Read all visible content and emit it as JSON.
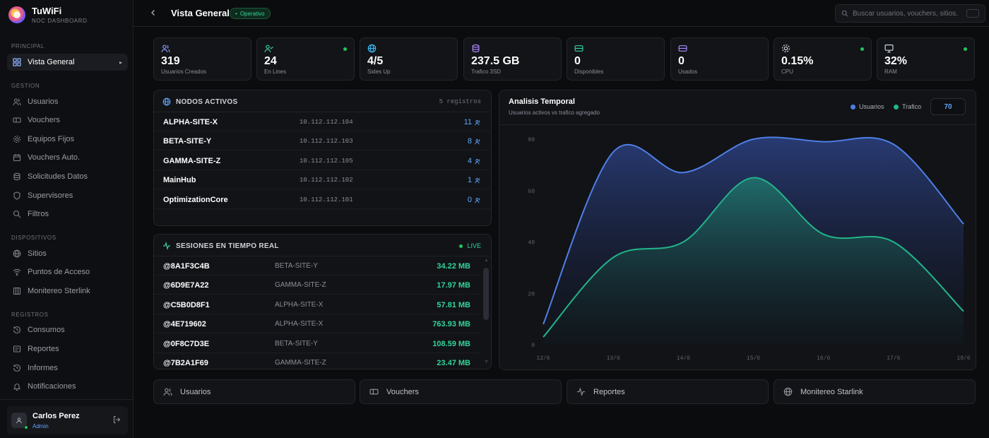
{
  "brand": {
    "name": "TuWiFi",
    "subtitle": "NOC DASHBOARD"
  },
  "sidebar": {
    "sections": [
      {
        "label": "PRINCIPAL",
        "items": [
          {
            "label": "Vista General",
            "icon": "grid-icon",
            "active": true
          }
        ]
      },
      {
        "label": "GESTION",
        "items": [
          {
            "label": "Usuarios",
            "icon": "users-icon"
          },
          {
            "label": "Vouchers",
            "icon": "ticket-icon"
          },
          {
            "label": "Equipos Fijos",
            "icon": "gear-icon"
          },
          {
            "label": "Vouchers Auto.",
            "icon": "calendar-icon"
          },
          {
            "label": "Solicitudes Datos",
            "icon": "database-icon"
          },
          {
            "label": "Supervisores",
            "icon": "shield-icon"
          },
          {
            "label": "Filtros",
            "icon": "search-icon"
          }
        ]
      },
      {
        "label": "DISPOSITIVOS",
        "items": [
          {
            "label": "Sitios",
            "icon": "globe-icon"
          },
          {
            "label": "Puntos de Acceso",
            "icon": "wifi-icon"
          },
          {
            "label": "Monitereo Sterlink",
            "icon": "satellite-icon"
          }
        ]
      },
      {
        "label": "REGISTROS",
        "items": [
          {
            "label": "Consumos",
            "icon": "history-icon"
          },
          {
            "label": "Reportes",
            "icon": "report-icon"
          },
          {
            "label": "Informes",
            "icon": "clock-icon"
          },
          {
            "label": "Notificaciones",
            "icon": "bell-icon"
          }
        ]
      }
    ]
  },
  "user": {
    "name": "Carlos Perez",
    "role": "Admin"
  },
  "header": {
    "title": "Vista General",
    "status": "Operativo",
    "search_placeholder": "Buscar usuarios, vouchers, sitios..."
  },
  "stats": [
    {
      "value": "319",
      "label": "Usuarios Creados",
      "icon": "users-icon",
      "color": "#8b9cf7",
      "dot": false
    },
    {
      "value": "24",
      "label": "En Lines",
      "icon": "user-check-icon",
      "color": "#34d399",
      "dot": true
    },
    {
      "value": "4/5",
      "label": "Sides Up",
      "icon": "globe-icon",
      "color": "#38bdf8",
      "dot": false
    },
    {
      "value": "237.5 GB",
      "label": "Trafico 3SD",
      "icon": "database-icon",
      "color": "#a78bfa",
      "dot": false
    },
    {
      "value": "0",
      "label": "Disponibles",
      "icon": "ticket-icon",
      "color": "#34d399",
      "dot": false
    },
    {
      "value": "0",
      "label": "Usados",
      "icon": "ticket-icon",
      "color": "#a78bfa",
      "dot": false
    },
    {
      "value": "0.15%",
      "label": "CPU",
      "icon": "cpu-icon",
      "color": "#cbd5e1",
      "dot": true
    },
    {
      "value": "32%",
      "label": "RAM",
      "icon": "monitor-icon",
      "color": "#cbd5e1",
      "dot": true
    }
  ],
  "nodes": {
    "title": "NODOS ACTIVOS",
    "count": "5 registros",
    "rows": [
      {
        "name": "ALPHA-SITE-X",
        "ip": "10.112.112.104",
        "users": "11"
      },
      {
        "name": "BETA-SITE-Y",
        "ip": "10.112.112.103",
        "users": "8"
      },
      {
        "name": "GAMMA-SITE-Z",
        "ip": "10.112.112.105",
        "users": "4"
      },
      {
        "name": "MainHub",
        "ip": "10.112.112.102",
        "users": "1"
      },
      {
        "name": "OptimizationCore",
        "ip": "10.112.112.101",
        "users": "0"
      }
    ]
  },
  "sessions": {
    "title": "SESIONES EN TIEMPO REAL",
    "live": "LIVE",
    "rows": [
      {
        "id": "@8A1F3C4B",
        "site": "BETA-SITE-Y",
        "usage": "34.22 MB"
      },
      {
        "id": "@6D9E7A22",
        "site": "GAMMA-SITE-Z",
        "usage": "17.97 MB"
      },
      {
        "id": "@C5B0D8F1",
        "site": "ALPHA-SITE-X",
        "usage": "57.81 MB"
      },
      {
        "id": "@4E719602",
        "site": "ALPHA-SITE-X",
        "usage": "763.93 MB"
      },
      {
        "id": "@0F8C7D3E",
        "site": "BETA-SITE-Y",
        "usage": "108.59 MB"
      },
      {
        "id": "@7B2A1F69",
        "site": "GAMMA-SITE-Z",
        "usage": "23.47 MB"
      }
    ]
  },
  "chart_panel": {
    "title": "Analisis Temporal",
    "subtitle": "Usuarios activos vs trafico agregado",
    "value_box": "70"
  },
  "chart_data": {
    "type": "area",
    "x": [
      "12/6",
      "13/6",
      "14/6",
      "15/6",
      "16/6",
      "17/6",
      "18/6"
    ],
    "yticks": [
      "0",
      "20",
      "40",
      "60",
      "80"
    ],
    "ylim": [
      0,
      80
    ],
    "legend_position": "top-right",
    "series": [
      {
        "name": "Usuarios",
        "color": "#4f7fe6",
        "values": [
          8,
          75,
          67,
          80,
          79,
          78,
          47
        ]
      },
      {
        "name": "Trafico",
        "color": "#22b58a",
        "values": [
          3,
          34,
          40,
          65,
          43,
          40,
          13
        ]
      }
    ]
  },
  "quick_actions": [
    {
      "label": "Usuarios",
      "icon": "users-icon"
    },
    {
      "label": "Vouchers",
      "icon": "ticket-icon"
    },
    {
      "label": "Reportes",
      "icon": "activity-icon"
    },
    {
      "label": "Monitereo Starlink",
      "icon": "globe-icon"
    }
  ]
}
